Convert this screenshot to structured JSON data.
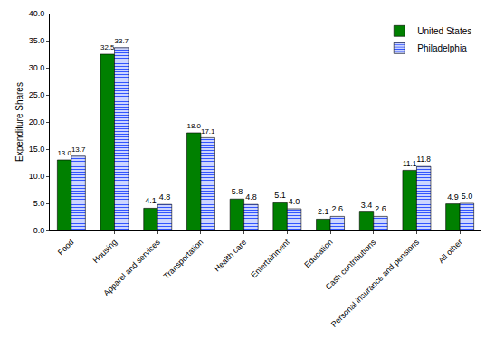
{
  "chart_data": {
    "type": "bar",
    "y_label": "Expenditure Shares",
    "categories": [
      "Food",
      "Housing",
      "Apparel and services",
      "Transportation",
      "Health care",
      "Entertainment",
      "Education",
      "Cash contributions",
      "Personal insurance and pensions",
      "All other"
    ],
    "series": [
      {
        "name": "United States",
        "color": "#008000",
        "values": [
          13.0,
          32.5,
          4.1,
          18.0,
          5.8,
          5.1,
          2.1,
          3.4,
          11.1,
          4.9
        ],
        "value_labels": [
          "13.0",
          "32.5",
          "4.1",
          "18.0",
          "5.8",
          "5.1",
          "2.1",
          "3.4",
          "11.1",
          "4.9"
        ]
      },
      {
        "name": "Philadelphia",
        "color": "#3355ff",
        "marker": "hatched",
        "values": [
          13.7,
          33.7,
          4.8,
          17.1,
          4.8,
          4.0,
          2.6,
          2.6,
          11.8,
          5.0
        ],
        "value_labels": [
          "13.7",
          "33.7",
          "4.8",
          "17.1",
          "4.8",
          "4.0",
          "2.6",
          "2.6",
          "11.8",
          "5.0"
        ]
      }
    ],
    "ylim": [
      0,
      40
    ],
    "yticks": [
      {
        "value": 0,
        "label": "0.0"
      },
      {
        "value": 5,
        "label": "5.0"
      },
      {
        "value": 10,
        "label": "10.0"
      },
      {
        "value": 15,
        "label": "15.0"
      },
      {
        "value": 20,
        "label": "20.0"
      },
      {
        "value": 25,
        "label": "25.0"
      },
      {
        "value": 30,
        "label": "30.0"
      },
      {
        "value": 35,
        "label": "35.0"
      },
      {
        "value": 40,
        "label": "40.0"
      }
    ],
    "grid": false,
    "legend": "top right",
    "data_labels": true
  }
}
